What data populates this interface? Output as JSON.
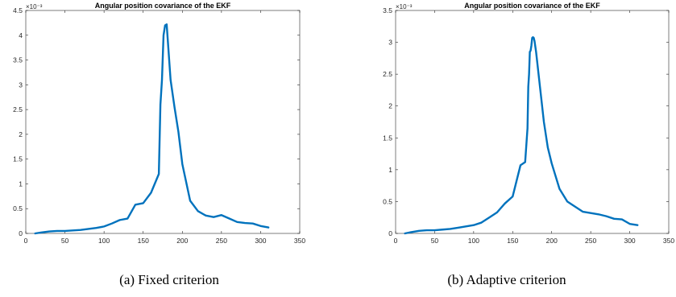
{
  "captions": [
    "(a) Fixed criterion",
    "(b) Adaptive criterion"
  ],
  "chart_data": [
    {
      "type": "line",
      "title": "Angular position covariance of the EKF",
      "xlabel": "",
      "ylabel": "",
      "xlim": [
        0,
        350
      ],
      "ylim": [
        0,
        4.5
      ],
      "y_exponent_label": "×10⁻³",
      "xticks": [
        0,
        50,
        100,
        150,
        200,
        250,
        300,
        350
      ],
      "yticks": [
        0,
        0.5,
        1,
        1.5,
        2,
        2.5,
        3,
        3.5,
        4,
        4.5
      ],
      "line_color": "#0072bd",
      "series": [
        {
          "x": [
            12,
            20,
            30,
            40,
            50,
            60,
            70,
            80,
            90,
            100,
            110,
            120,
            130,
            140,
            150,
            160,
            170,
            172,
            174,
            176,
            178,
            180,
            185,
            190,
            195,
            200,
            210,
            220,
            230,
            240,
            250,
            260,
            270,
            280,
            290,
            300,
            310
          ],
          "y": [
            0,
            0.02,
            0.04,
            0.05,
            0.05,
            0.06,
            0.07,
            0.09,
            0.11,
            0.14,
            0.2,
            0.27,
            0.3,
            0.58,
            0.61,
            0.82,
            1.2,
            2.6,
            3.1,
            4.0,
            4.2,
            4.22,
            3.1,
            2.55,
            2.05,
            1.4,
            0.66,
            0.45,
            0.36,
            0.33,
            0.37,
            0.3,
            0.23,
            0.21,
            0.2,
            0.15,
            0.12
          ]
        }
      ]
    },
    {
      "type": "line",
      "title": "Angular position covariance of the EKF",
      "xlabel": "",
      "ylabel": "",
      "xlim": [
        0,
        350
      ],
      "ylim": [
        0,
        3.5
      ],
      "y_exponent_label": "×10⁻³",
      "xticks": [
        0,
        50,
        100,
        150,
        200,
        250,
        300,
        350
      ],
      "yticks": [
        0,
        0.5,
        1,
        1.5,
        2,
        2.5,
        3,
        3.5
      ],
      "line_color": "#0072bd",
      "series": [
        {
          "x": [
            12,
            20,
            30,
            40,
            50,
            60,
            70,
            80,
            90,
            100,
            110,
            120,
            130,
            140,
            150,
            160,
            166,
            169,
            170,
            171,
            172,
            173,
            174,
            175,
            176,
            177,
            178,
            180,
            185,
            190,
            195,
            200,
            210,
            220,
            230,
            240,
            250,
            260,
            270,
            280,
            290,
            300,
            310
          ],
          "y": [
            0,
            0.02,
            0.04,
            0.05,
            0.05,
            0.06,
            0.07,
            0.09,
            0.11,
            0.13,
            0.17,
            0.25,
            0.33,
            0.47,
            0.58,
            1.07,
            1.12,
            1.65,
            2.3,
            2.5,
            2.85,
            2.87,
            2.95,
            3.07,
            3.08,
            3.07,
            3.02,
            2.85,
            2.3,
            1.75,
            1.35,
            1.1,
            0.7,
            0.5,
            0.42,
            0.34,
            0.32,
            0.3,
            0.27,
            0.23,
            0.22,
            0.15,
            0.13
          ]
        }
      ]
    }
  ]
}
